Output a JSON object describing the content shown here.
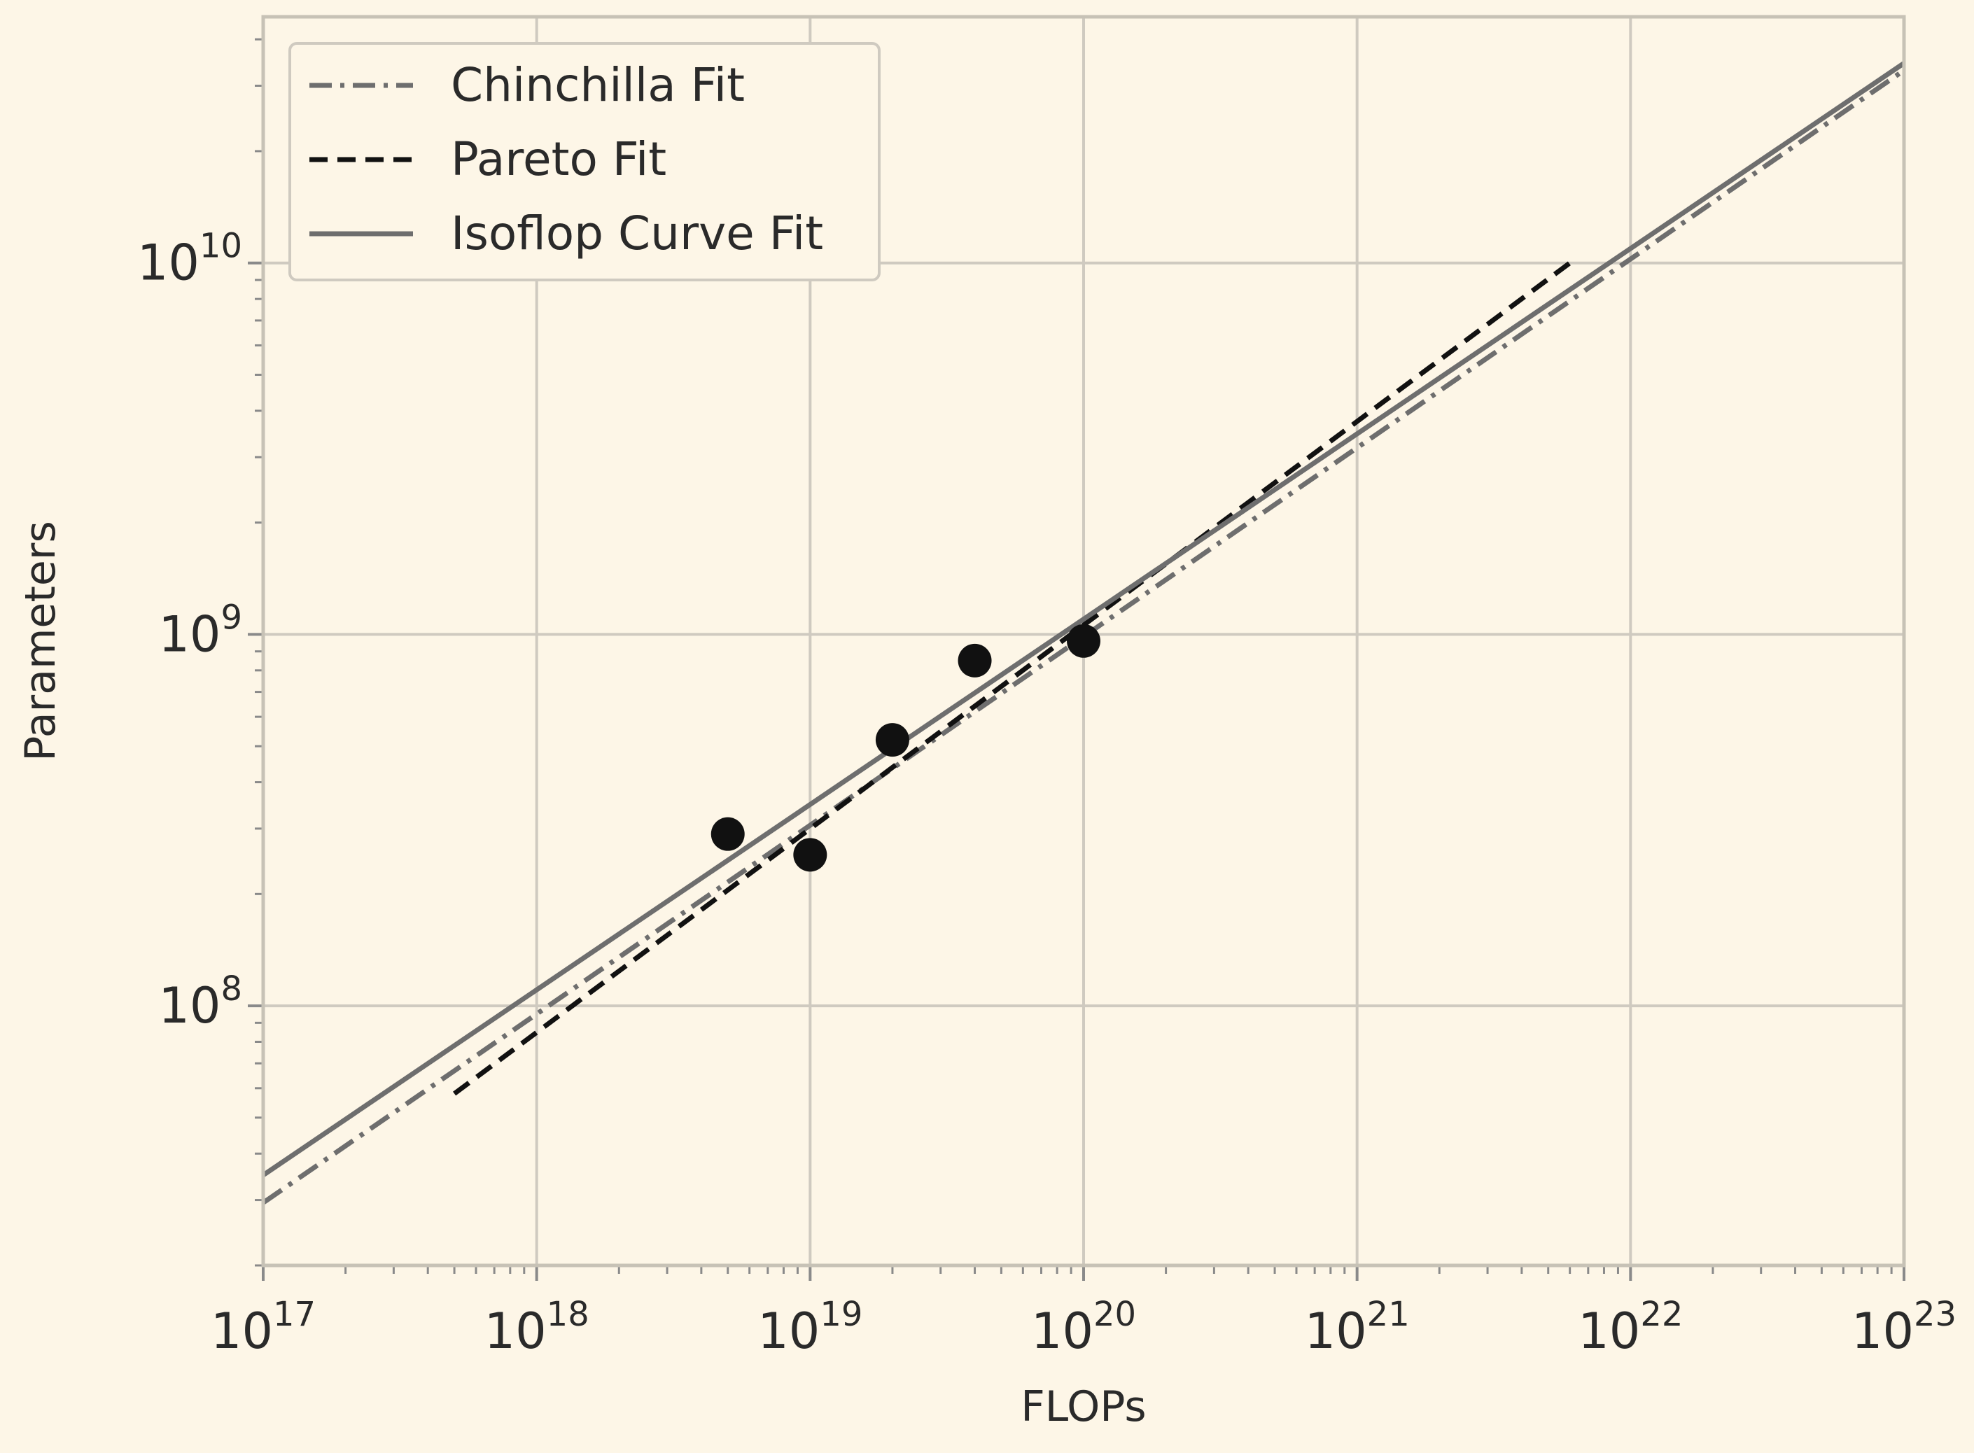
{
  "chart_data": {
    "type": "line",
    "xlabel": "FLOPs",
    "ylabel": "Parameters",
    "xscale": "log",
    "yscale": "log",
    "xlim": [
      1e+17,
      1e+23
    ],
    "ylim": [
      20000000.0,
      46000000000.0
    ],
    "grid": true,
    "legend_position": "top-left",
    "x_ticks": [
      {
        "mantissa": "10",
        "exp": "17",
        "value": 1e+17
      },
      {
        "mantissa": "10",
        "exp": "18",
        "value": 1e+18
      },
      {
        "mantissa": "10",
        "exp": "19",
        "value": 1e+19
      },
      {
        "mantissa": "10",
        "exp": "20",
        "value": 1e+20
      },
      {
        "mantissa": "10",
        "exp": "21",
        "value": 1e+21
      },
      {
        "mantissa": "10",
        "exp": "22",
        "value": 1e+22
      },
      {
        "mantissa": "10",
        "exp": "23",
        "value": 1e+23
      }
    ],
    "y_ticks": [
      {
        "mantissa": "10",
        "exp": "8",
        "value": 100000000.0
      },
      {
        "mantissa": "10",
        "exp": "9",
        "value": 1000000000.0
      },
      {
        "mantissa": "10",
        "exp": "10",
        "value": 10000000000.0
      }
    ],
    "series": [
      {
        "name": "Chinchilla Fit",
        "style": "dashdot",
        "color": "#6e6e6e",
        "x": [
          1e+17,
          1e+23
        ],
        "y": [
          29500000.0,
          33000000000.0
        ]
      },
      {
        "name": "Pareto Fit",
        "style": "dashed",
        "color": "#111111",
        "x": [
          5e+17,
          6e+21
        ],
        "y": [
          58000000.0,
          10000000000.0
        ]
      },
      {
        "name": "Isoflop Curve Fit",
        "style": "solid",
        "color": "#6e6e6e",
        "x": [
          1e+17,
          1e+23
        ],
        "y": [
          35000000.0,
          34500000000.0
        ]
      }
    ],
    "points": {
      "color": "#111111",
      "x": [
        5e+18,
        1e+19,
        2e+19,
        4e+19,
        1e+20
      ],
      "y": [
        290000000.0,
        255000000.0,
        520000000.0,
        850000000.0,
        960000000.0
      ]
    }
  }
}
